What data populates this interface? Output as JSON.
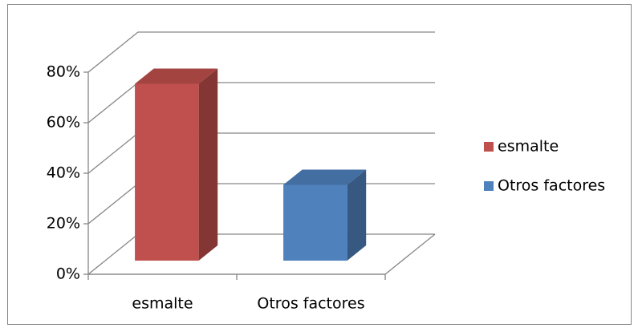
{
  "chart_data": {
    "type": "bar3d",
    "categories": [
      "esmalte",
      "Otros factores"
    ],
    "series": [
      {
        "name": "esmalte",
        "color": "#c0504d",
        "values": [
          70,
          null
        ]
      },
      {
        "name": "Otros factores",
        "color": "#4f81bd",
        "values": [
          null,
          30
        ]
      }
    ],
    "ylim": [
      0,
      80
    ],
    "yticks": [
      {
        "value": 0,
        "label": "0%"
      },
      {
        "value": 20,
        "label": "20%"
      },
      {
        "value": 40,
        "label": "40%"
      },
      {
        "value": 60,
        "label": "60%"
      },
      {
        "value": 80,
        "label": "80%"
      }
    ],
    "grid": true,
    "legend": "right"
  }
}
